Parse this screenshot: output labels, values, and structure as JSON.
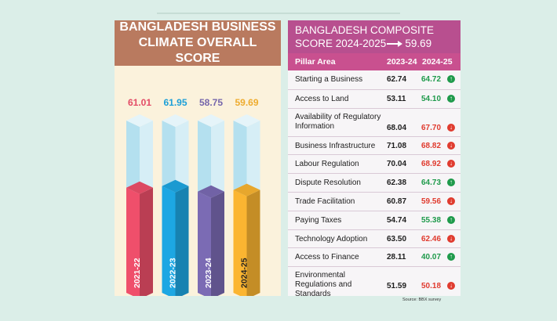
{
  "left_panel": {
    "title": "BANGLADESH BUSINESS CLIMATE OVERALL SCORE"
  },
  "chart_data": {
    "type": "bar",
    "title": "BANGLADESH BUSINESS CLIMATE OVERALL SCORE",
    "categories": [
      "2021-22",
      "2022-23",
      "2023-24",
      "2024-25"
    ],
    "values": [
      61.01,
      61.95,
      58.75,
      59.69
    ],
    "value_labels": [
      "61.01",
      "61.95",
      "58.75",
      "59.69"
    ],
    "colors": [
      "#ef4f6b",
      "#1da7e3",
      "#7b6bb4",
      "#fbb531"
    ],
    "empty_color": "#b4e0ef",
    "ylim": [
      0,
      100
    ]
  },
  "right_panel": {
    "title_line1": "BANGLADESH COMPOSITE",
    "title_line2_prefix": "SCORE 2024-2025",
    "title_value": "59.69",
    "columns": [
      "Pillar Area",
      "2023-24",
      "2024-25"
    ],
    "rows": [
      {
        "lines": [
          "Starting a Business"
        ],
        "v2324": "62.74",
        "v2425": "64.72",
        "trend": "up"
      },
      {
        "lines": [
          "Access to Land"
        ],
        "v2324": "53.11",
        "v2425": "54.10",
        "trend": "up"
      },
      {
        "lines": [
          "Availability of Regulatory",
          "Information"
        ],
        "v2324": "68.04",
        "v2425": "67.70",
        "trend": "down"
      },
      {
        "lines": [
          "Business Infrastructure"
        ],
        "v2324": "71.08",
        "v2425": "68.82",
        "trend": "down"
      },
      {
        "lines": [
          "Labour Regulation"
        ],
        "v2324": "70.04",
        "v2425": "68.92",
        "trend": "down"
      },
      {
        "lines": [
          "Dispute Resolution"
        ],
        "v2324": "62.38",
        "v2425": "64.73",
        "trend": "up"
      },
      {
        "lines": [
          "Trade Facilitation"
        ],
        "v2324": "60.87",
        "v2425": "59.56",
        "trend": "down"
      },
      {
        "lines": [
          "Paying Taxes"
        ],
        "v2324": "54.74",
        "v2425": "55.38",
        "trend": "up"
      },
      {
        "lines": [
          "Technology Adoption"
        ],
        "v2324": "63.50",
        "v2425": "62.46",
        "trend": "down"
      },
      {
        "lines": [
          "Access to Finance"
        ],
        "v2324": "28.11",
        "v2425": "40.07",
        "trend": "up"
      },
      {
        "lines": [
          "Environmental",
          "Regulations and Standards"
        ],
        "v2324": "51.59",
        "v2425": "50.18",
        "trend": "down"
      }
    ],
    "source": "Source: BBX survey"
  }
}
